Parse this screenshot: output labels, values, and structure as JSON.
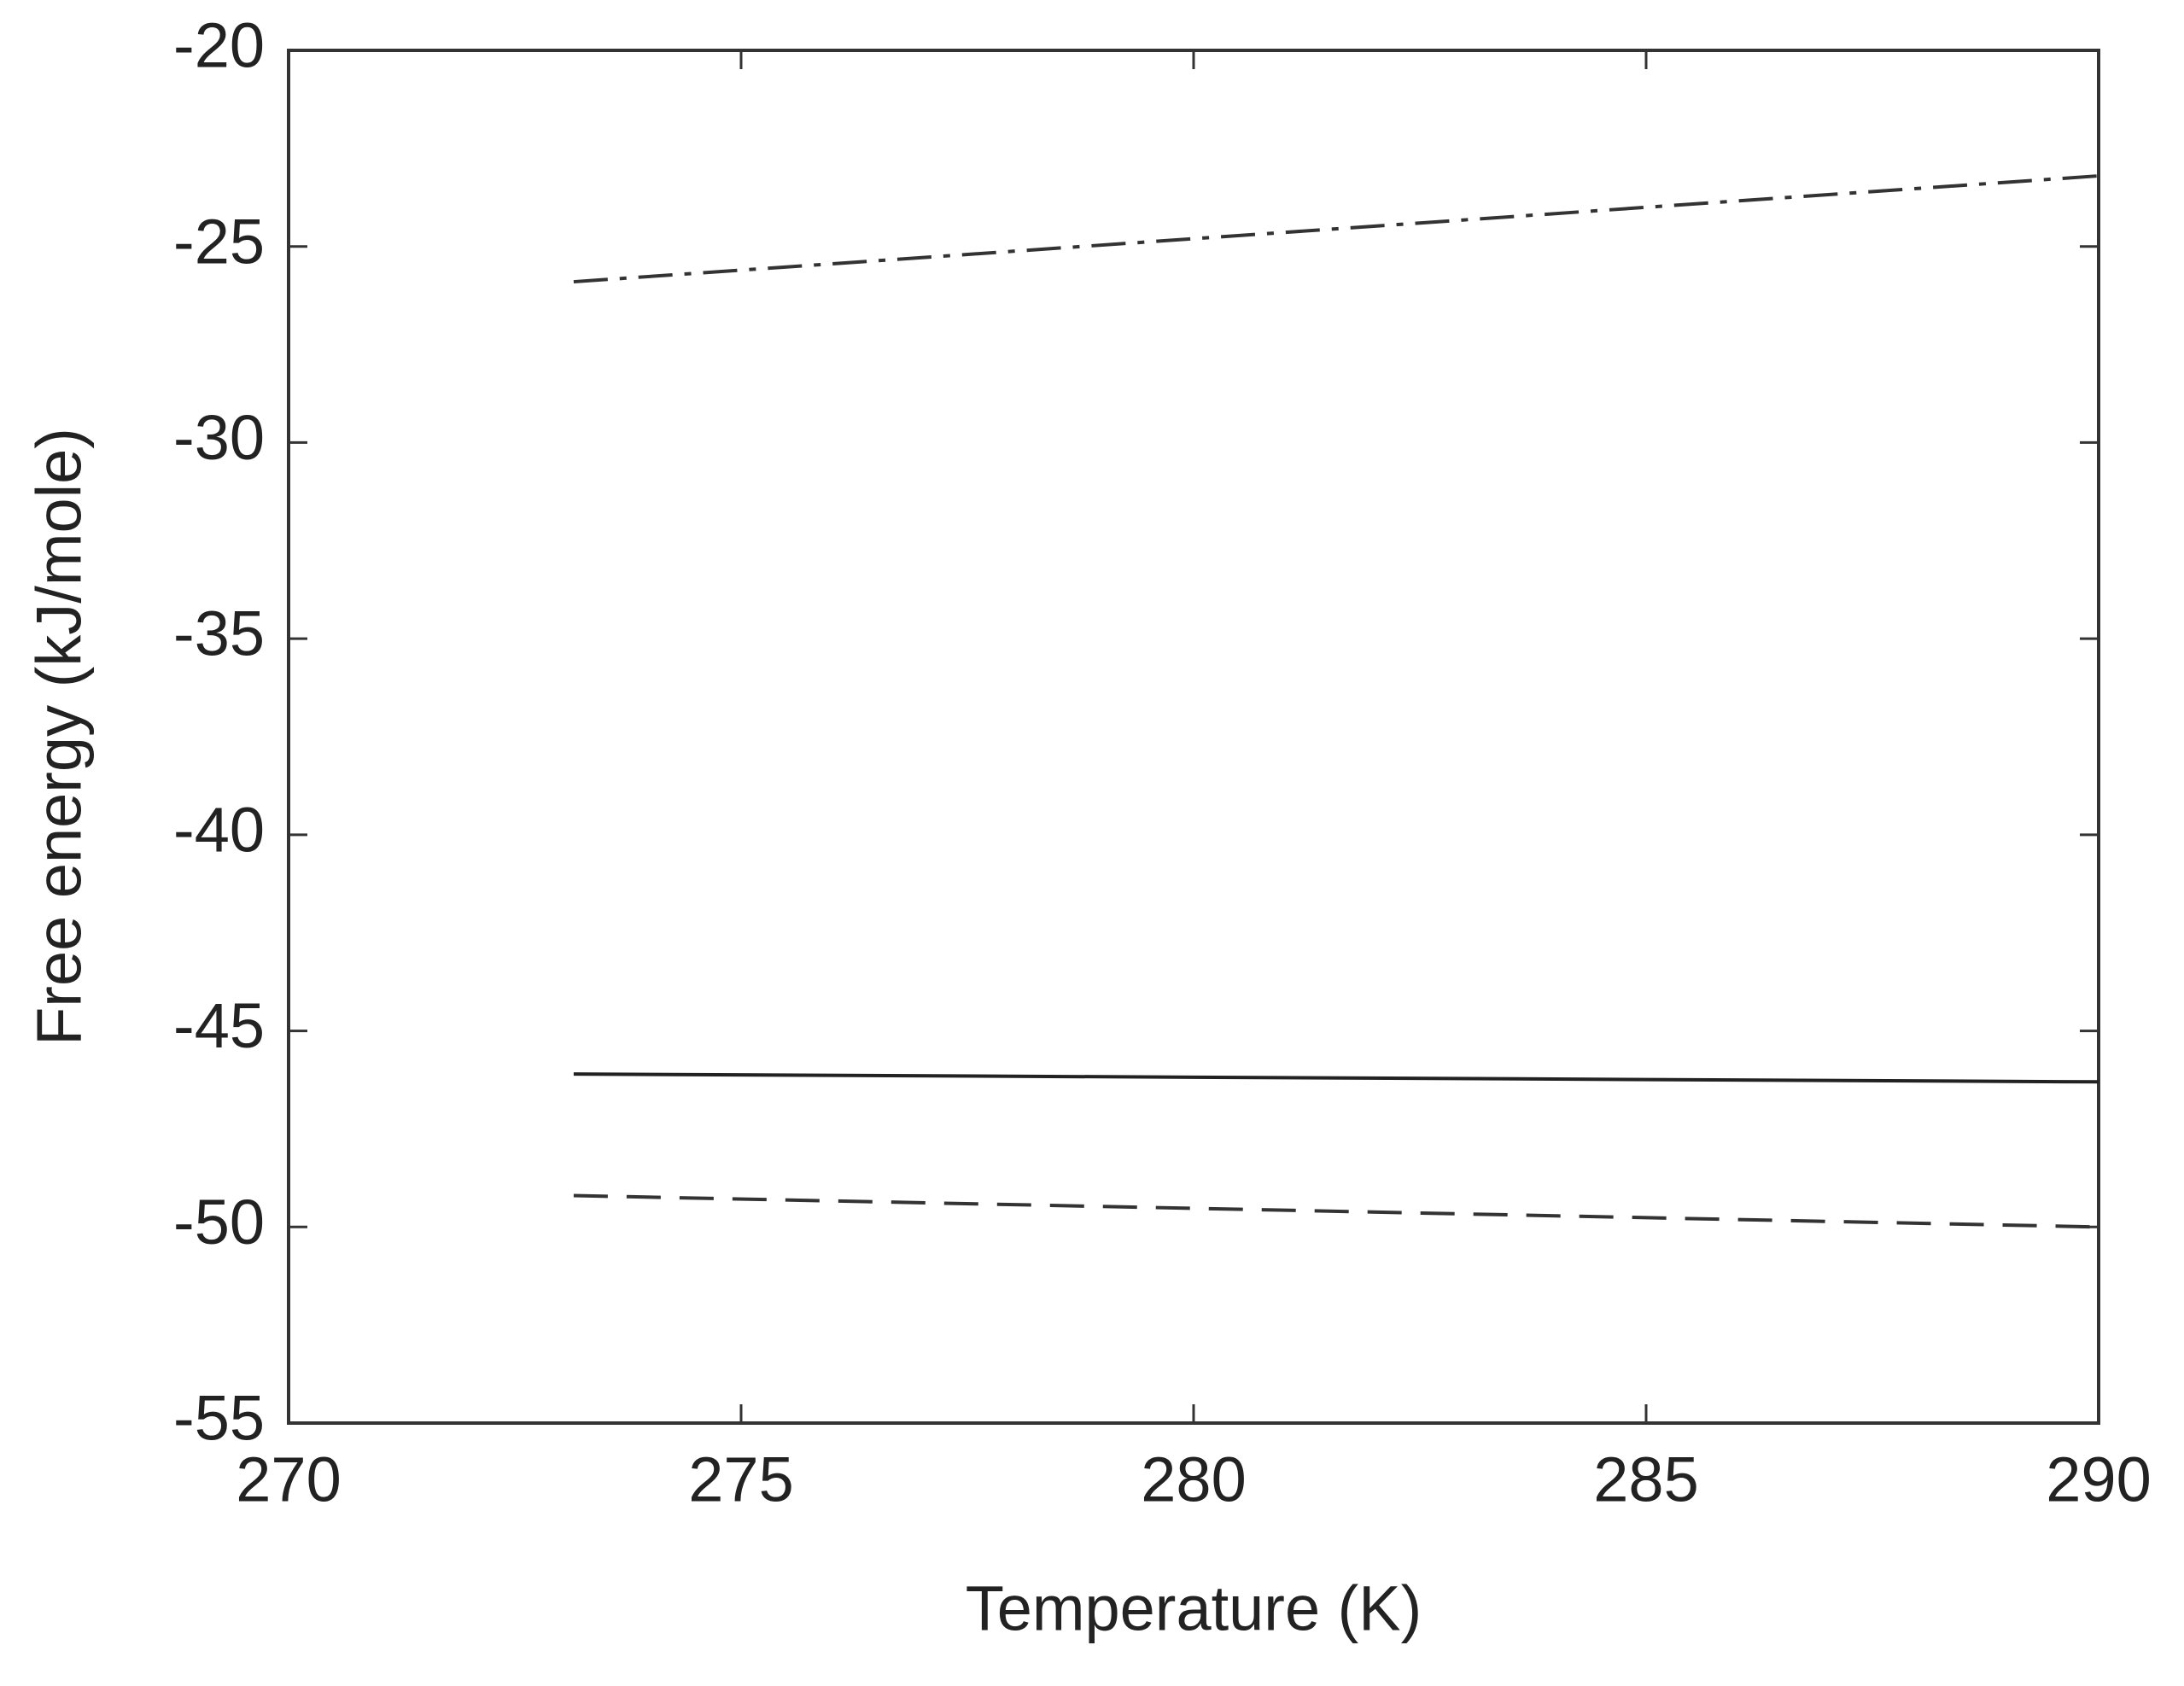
{
  "chart_data": {
    "type": "line",
    "x_label": "Temperature (K)",
    "y_label": "Free energy (kJ/mole)",
    "xlim": [
      270,
      290
    ],
    "xticks": [
      270,
      275,
      280,
      285,
      290
    ],
    "ylim": [
      -55,
      -20
    ],
    "yticks": [
      -55,
      -50,
      -45,
      -40,
      -35,
      -30,
      -25,
      -20
    ],
    "grid": false,
    "series": [
      {
        "color": "#333333",
        "dash": "dashdot",
        "x": [
          273.15,
          290
        ],
        "values": [
          -25.9,
          -23.2
        ]
      },
      {
        "color": "#222222",
        "dash": "solid",
        "x": [
          273.15,
          290
        ],
        "values": [
          -46.1,
          -46.3
        ]
      },
      {
        "color": "#333333",
        "dash": "dashed",
        "x": [
          273.15,
          290
        ],
        "values": [
          -49.2,
          -50.0
        ]
      }
    ]
  }
}
